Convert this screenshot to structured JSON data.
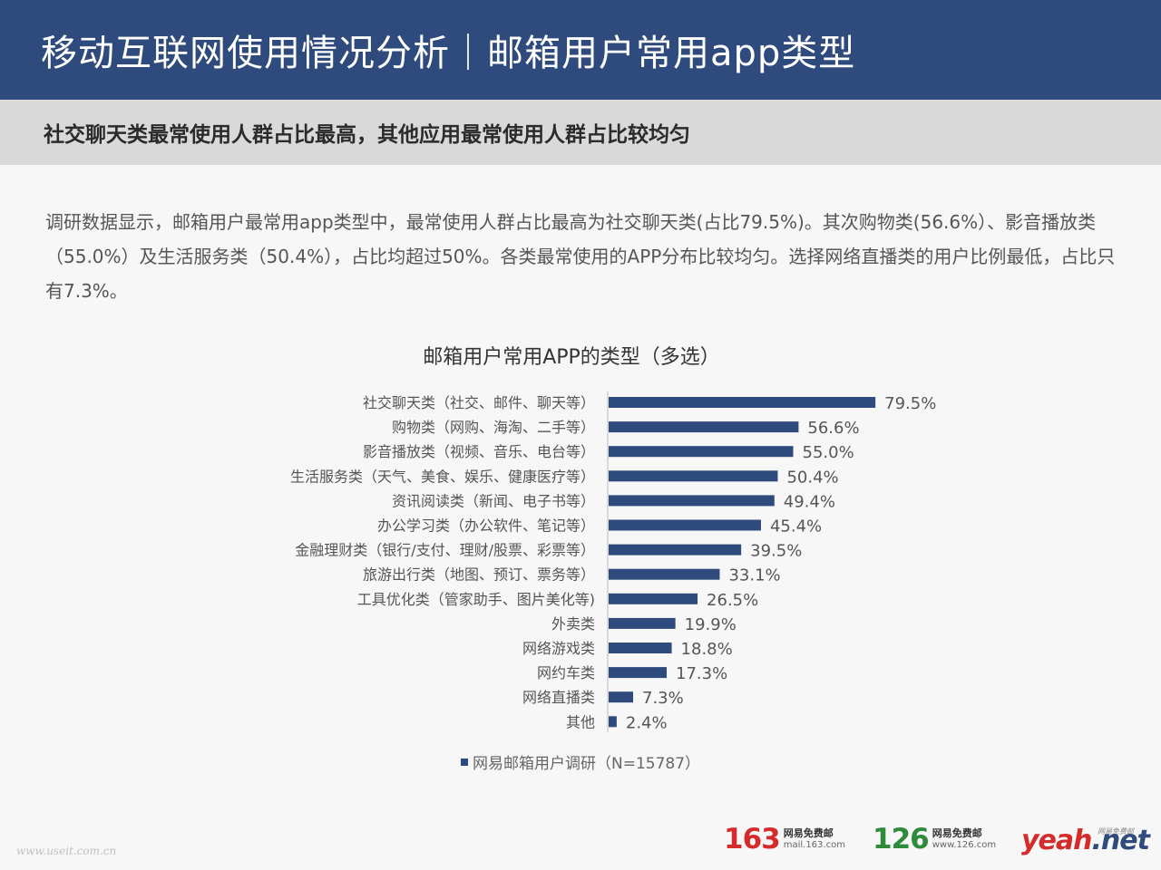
{
  "header": {
    "title": "移动互联网使用情况分析｜邮箱用户常用app类型"
  },
  "subheader": {
    "text": "社交聊天类最常使用人群占比最高，其他应用最常使用人群占比较均匀"
  },
  "description": "调研数据显示，邮箱用户最常用app类型中，最常使用人群占比最高为社交聊天类(占比79.5%)。其次购物类(56.6%）、影音播放类（55.0%）及生活服务类（50.4%），占比均超过50%。各类最常使用的APP分布比较均匀。选择网络直播类的用户比例最低，占比只有7.3%。",
  "chart_data": {
    "type": "bar",
    "orientation": "horizontal",
    "title": "邮箱用户常用APP的类型（多选）",
    "categories": [
      "社交聊天类（社交、邮件、聊天等）",
      "购物类（网购、海淘、二手等）",
      "影音播放类（视频、音乐、电台等）",
      "生活服务类（天气、美食、娱乐、健康医疗等）",
      "资讯阅读类（新闻、电子书等）",
      "办公学习类（办公软件、笔记等）",
      "金融理财类（银行/支付、理财/股票、彩票等）",
      "旅游出行类（地图、预订、票务等）",
      "工具优化类（管家助手、图片美化等)",
      "外卖类",
      "网络游戏类",
      "网约车类",
      "网络直播类",
      "其他"
    ],
    "series": [
      {
        "name": "网易邮箱用户调研（N=15787）",
        "values": [
          79.5,
          56.6,
          55.0,
          50.4,
          49.4,
          45.4,
          39.5,
          33.1,
          26.5,
          19.9,
          18.8,
          17.3,
          7.3,
          2.4
        ],
        "value_labels": [
          "79.5%",
          "56.6%",
          "55.0%",
          "50.4%",
          "49.4%",
          "45.4%",
          "39.5%",
          "33.1%",
          "26.5%",
          "19.9%",
          "18.8%",
          "17.3%",
          "7.3%",
          "2.4%"
        ]
      }
    ],
    "xlim": [
      0,
      100
    ],
    "unit": "%",
    "bar_color": "#2f4a7c",
    "legend_position": "bottom",
    "grid": false
  },
  "footer": {
    "watermark": "www.useit.com.cn",
    "brand_163": {
      "number": "163",
      "name": "网易免费邮",
      "url": "mail.163.com"
    },
    "brand_126": {
      "number": "126",
      "name": "网易免费邮",
      "url": "www.126.com"
    },
    "brand_yeah": {
      "part1": "yeah",
      "part2": ".net",
      "tag": "网易免费邮"
    }
  }
}
